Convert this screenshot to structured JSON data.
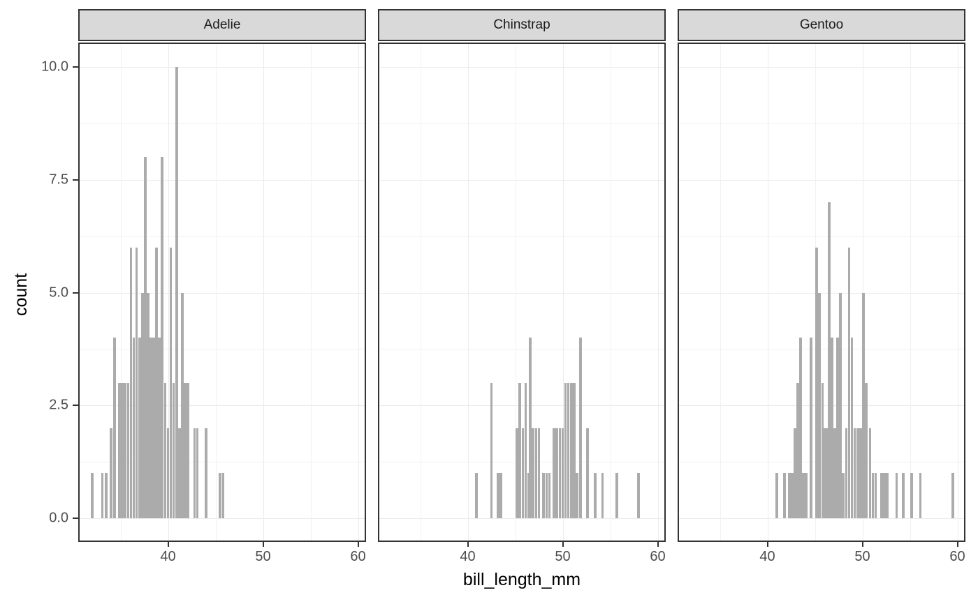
{
  "chart_data": {
    "type": "bar",
    "subtype": "faceted-histogram",
    "title": "",
    "xlabel": "bill_length_mm",
    "ylabel": "count",
    "legend": "none",
    "grid": true,
    "xlim": [
      30.7,
      60.7
    ],
    "ylim": [
      -0.53,
      10.53
    ],
    "binwidth": 0.28,
    "x_major_ticks": [
      {
        "value": 40,
        "label": "40"
      },
      {
        "value": 50,
        "label": "50"
      },
      {
        "value": 60,
        "label": "60"
      }
    ],
    "x_minor_ticks": [
      35,
      45,
      55
    ],
    "y_major_ticks": [
      {
        "value": 0,
        "label": "0.0"
      },
      {
        "value": 2.5,
        "label": "2.5"
      },
      {
        "value": 5,
        "label": "5.0"
      },
      {
        "value": 7.5,
        "label": "7.5"
      },
      {
        "value": 10,
        "label": "10.0"
      }
    ],
    "y_minor_ticks": [
      1.25,
      3.75,
      6.25,
      8.75
    ],
    "facets": [
      {
        "label": "Adelie",
        "bars": [
          {
            "x": 32.0,
            "count": 1
          },
          {
            "x": 33.1,
            "count": 1
          },
          {
            "x": 33.5,
            "count": 1
          },
          {
            "x": 34.0,
            "count": 2
          },
          {
            "x": 34.4,
            "count": 4
          },
          {
            "x": 34.9,
            "count": 3
          },
          {
            "x": 35.2,
            "count": 3
          },
          {
            "x": 35.5,
            "count": 3
          },
          {
            "x": 35.8,
            "count": 3
          },
          {
            "x": 36.1,
            "count": 6
          },
          {
            "x": 36.4,
            "count": 4
          },
          {
            "x": 36.7,
            "count": 6
          },
          {
            "x": 37.0,
            "count": 4
          },
          {
            "x": 37.3,
            "count": 5
          },
          {
            "x": 37.6,
            "count": 8
          },
          {
            "x": 37.9,
            "count": 5
          },
          {
            "x": 38.2,
            "count": 4
          },
          {
            "x": 38.5,
            "count": 4
          },
          {
            "x": 38.8,
            "count": 6
          },
          {
            "x": 39.1,
            "count": 4
          },
          {
            "x": 39.4,
            "count": 8
          },
          {
            "x": 39.7,
            "count": 3
          },
          {
            "x": 40.0,
            "count": 2
          },
          {
            "x": 40.3,
            "count": 6
          },
          {
            "x": 40.6,
            "count": 3
          },
          {
            "x": 40.9,
            "count": 10
          },
          {
            "x": 41.2,
            "count": 2
          },
          {
            "x": 41.5,
            "count": 5
          },
          {
            "x": 41.8,
            "count": 3
          },
          {
            "x": 42.1,
            "count": 3
          },
          {
            "x": 42.8,
            "count": 2
          },
          {
            "x": 43.1,
            "count": 2
          },
          {
            "x": 44.0,
            "count": 2
          },
          {
            "x": 45.5,
            "count": 1
          },
          {
            "x": 45.8,
            "count": 1
          }
        ]
      },
      {
        "label": "Chinstrap",
        "bars": [
          {
            "x": 40.9,
            "count": 1
          },
          {
            "x": 42.5,
            "count": 3
          },
          {
            "x": 43.2,
            "count": 1
          },
          {
            "x": 43.5,
            "count": 1
          },
          {
            "x": 45.2,
            "count": 2
          },
          {
            "x": 45.5,
            "count": 3
          },
          {
            "x": 45.8,
            "count": 2
          },
          {
            "x": 46.1,
            "count": 3
          },
          {
            "x": 46.4,
            "count": 1
          },
          {
            "x": 46.6,
            "count": 4
          },
          {
            "x": 46.9,
            "count": 2
          },
          {
            "x": 47.2,
            "count": 2
          },
          {
            "x": 47.5,
            "count": 2
          },
          {
            "x": 48.0,
            "count": 1
          },
          {
            "x": 48.3,
            "count": 1
          },
          {
            "x": 48.6,
            "count": 1
          },
          {
            "x": 49.1,
            "count": 2
          },
          {
            "x": 49.4,
            "count": 2
          },
          {
            "x": 49.7,
            "count": 2
          },
          {
            "x": 50.0,
            "count": 2
          },
          {
            "x": 50.3,
            "count": 3
          },
          {
            "x": 50.6,
            "count": 3
          },
          {
            "x": 50.9,
            "count": 3
          },
          {
            "x": 51.2,
            "count": 3
          },
          {
            "x": 51.5,
            "count": 1
          },
          {
            "x": 51.9,
            "count": 4
          },
          {
            "x": 52.6,
            "count": 2
          },
          {
            "x": 53.4,
            "count": 1
          },
          {
            "x": 54.2,
            "count": 1
          },
          {
            "x": 55.7,
            "count": 1
          },
          {
            "x": 58.0,
            "count": 1
          }
        ]
      },
      {
        "label": "Gentoo",
        "bars": [
          {
            "x": 41.0,
            "count": 1
          },
          {
            "x": 41.8,
            "count": 1
          },
          {
            "x": 42.3,
            "count": 1
          },
          {
            "x": 42.6,
            "count": 1
          },
          {
            "x": 42.9,
            "count": 2
          },
          {
            "x": 43.2,
            "count": 3
          },
          {
            "x": 43.5,
            "count": 4
          },
          {
            "x": 43.8,
            "count": 1
          },
          {
            "x": 44.1,
            "count": 1
          },
          {
            "x": 44.6,
            "count": 4
          },
          {
            "x": 45.2,
            "count": 6
          },
          {
            "x": 45.5,
            "count": 5
          },
          {
            "x": 45.8,
            "count": 3
          },
          {
            "x": 46.0,
            "count": 2
          },
          {
            "x": 46.3,
            "count": 2
          },
          {
            "x": 46.5,
            "count": 7
          },
          {
            "x": 46.8,
            "count": 4
          },
          {
            "x": 47.1,
            "count": 2
          },
          {
            "x": 47.4,
            "count": 4
          },
          {
            "x": 47.7,
            "count": 5
          },
          {
            "x": 48.0,
            "count": 1
          },
          {
            "x": 48.3,
            "count": 2
          },
          {
            "x": 48.6,
            "count": 6
          },
          {
            "x": 48.9,
            "count": 4
          },
          {
            "x": 49.2,
            "count": 2
          },
          {
            "x": 49.5,
            "count": 2
          },
          {
            "x": 49.8,
            "count": 2
          },
          {
            "x": 50.1,
            "count": 5
          },
          {
            "x": 50.4,
            "count": 3
          },
          {
            "x": 50.8,
            "count": 2
          },
          {
            "x": 51.1,
            "count": 1
          },
          {
            "x": 51.4,
            "count": 1
          },
          {
            "x": 52.0,
            "count": 1
          },
          {
            "x": 52.3,
            "count": 1
          },
          {
            "x": 52.6,
            "count": 1
          },
          {
            "x": 53.6,
            "count": 1
          },
          {
            "x": 54.3,
            "count": 1
          },
          {
            "x": 55.2,
            "count": 1
          },
          {
            "x": 56.1,
            "count": 1
          },
          {
            "x": 59.5,
            "count": 1
          }
        ]
      }
    ],
    "colors": {
      "bar_fill": "#ABABAB",
      "grid_major": "#EBEBEB",
      "grid_minor": "#F1F1F1",
      "panel_border": "#333333",
      "strip_background": "#D9D9D9",
      "strip_text": "#1A1A1A",
      "axis_text": "#4D4D4D",
      "axis_title": "#000000",
      "tick_mark": "#333333",
      "background": "#FFFFFF"
    }
  }
}
